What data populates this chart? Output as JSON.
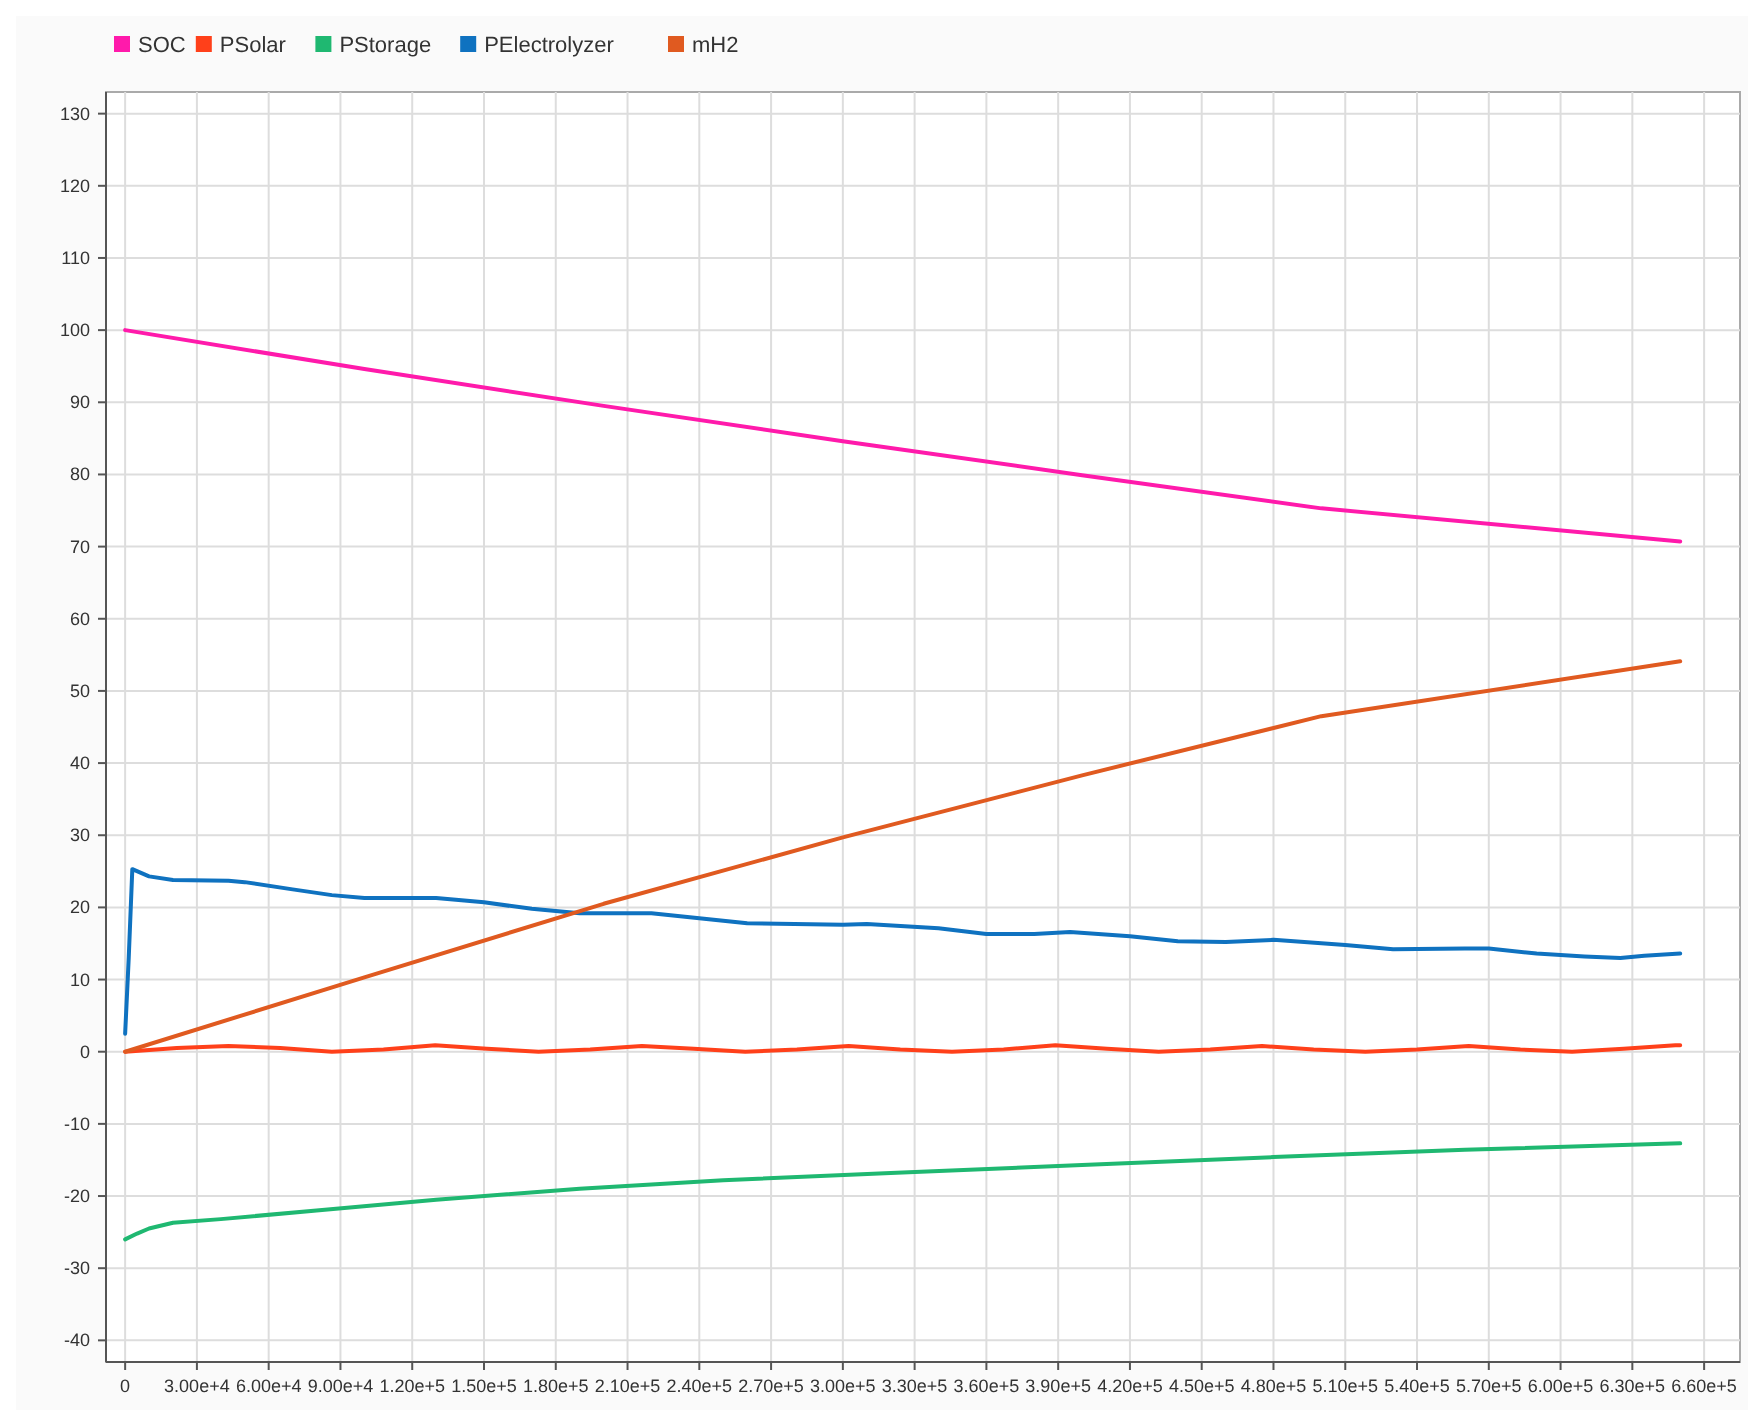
{
  "chart_data": {
    "type": "line",
    "legend": "top left",
    "grid": true,
    "line_style": "solid",
    "marker": "none",
    "xlim": [
      -8000,
      675000
    ],
    "ylim": [
      -43,
      133
    ],
    "xticks": [
      0,
      {
        "value": 30000,
        "label": "3.00e+4"
      },
      {
        "value": 60000,
        "label": "6.00e+4"
      },
      {
        "value": 90000,
        "label": "9.00e+4"
      },
      {
        "value": 120000,
        "label": "1.20e+5"
      },
      {
        "value": 150000,
        "label": "1.50e+5"
      },
      {
        "value": 180000,
        "label": "1.80e+5"
      },
      {
        "value": 210000,
        "label": "2.10e+5"
      },
      {
        "value": 240000,
        "label": "2.40e+5"
      },
      {
        "value": 270000,
        "label": "2.70e+5"
      },
      {
        "value": 300000,
        "label": "3.00e+5"
      },
      {
        "value": 330000,
        "label": "3.30e+5"
      },
      {
        "value": 360000,
        "label": "3.60e+5"
      },
      {
        "value": 390000,
        "label": "3.90e+5"
      },
      {
        "value": 420000,
        "label": "4.20e+5"
      },
      {
        "value": 450000,
        "label": "4.50e+5"
      },
      {
        "value": 480000,
        "label": "4.80e+5"
      },
      {
        "value": 510000,
        "label": "5.10e+5"
      },
      {
        "value": 540000,
        "label": "5.40e+5"
      },
      {
        "value": 570000,
        "label": "5.70e+5"
      },
      {
        "value": 600000,
        "label": "6.00e+5"
      },
      {
        "value": 630000,
        "label": "6.30e+5"
      },
      {
        "value": 660000,
        "label": "6.60e+5"
      }
    ],
    "yticks": [
      -40,
      -30,
      -20,
      -10,
      0,
      10,
      20,
      30,
      40,
      50,
      60,
      70,
      80,
      90,
      100,
      110,
      120,
      130
    ],
    "series": [
      {
        "name": "SOC",
        "color": "#ff1aab",
        "x": [
          0,
          100000,
          200000,
          300000,
          400000,
          500000,
          650000
        ],
        "values": [
          100,
          94.6,
          89.5,
          84.6,
          79.9,
          75.3,
          70.7
        ]
      },
      {
        "name": "PSolar",
        "color": "#ff401a",
        "x": [
          0,
          21600,
          43200,
          64800,
          86400,
          108000,
          129600,
          151200,
          172800,
          194400,
          216000,
          237600,
          259200,
          280800,
          302400,
          324000,
          345600,
          367200,
          388800,
          410400,
          432000,
          453600,
          475200,
          496800,
          518400,
          540000,
          561600,
          583200,
          604800,
          626400,
          648000,
          650000
        ],
        "values": [
          0,
          0.5,
          0.8,
          0.5,
          0,
          0.3,
          0.9,
          0.4,
          0,
          0.3,
          0.8,
          0.4,
          0,
          0.3,
          0.8,
          0.3,
          0,
          0.3,
          0.9,
          0.4,
          0,
          0.3,
          0.8,
          0.3,
          0,
          0.3,
          0.8,
          0.3,
          0,
          0.4,
          0.9,
          0.9
        ]
      },
      {
        "name": "PStorage",
        "color": "#1fb871",
        "x": [
          0,
          5000,
          10000,
          20000,
          40000,
          80000,
          130000,
          190000,
          250000,
          320000,
          400000,
          480000,
          560000,
          650000
        ],
        "values": [
          -26,
          -25.2,
          -24.5,
          -23.7,
          -23.2,
          -22,
          -20.5,
          -19,
          -17.8,
          -16.8,
          -15.7,
          -14.6,
          -13.6,
          -12.7
        ]
      },
      {
        "name": "PElectrolyzer",
        "color": "#0f72c0",
        "x": [
          0,
          1500,
          3000,
          10000,
          20000,
          43200,
          50000,
          70000,
          86400,
          100000,
          130000,
          150000,
          170000,
          190000,
          220000,
          240000,
          260000,
          300000,
          310000,
          340000,
          360000,
          380000,
          395000,
          420000,
          440000,
          460000,
          480000,
          510000,
          530000,
          560000,
          570000,
          590000,
          610000,
          625000,
          635000,
          650000
        ],
        "values": [
          2.5,
          13,
          25.3,
          24.3,
          23.8,
          23.7,
          23.5,
          22.5,
          21.7,
          21.3,
          21.3,
          20.7,
          19.8,
          19.2,
          19.2,
          18.5,
          17.8,
          17.6,
          17.7,
          17.1,
          16.3,
          16.3,
          16.6,
          16,
          15.3,
          15.2,
          15.5,
          14.8,
          14.2,
          14.3,
          14.3,
          13.6,
          13.2,
          13,
          13.3,
          13.6
        ]
      },
      {
        "name": "mH2",
        "color": "#e05a20",
        "x": [
          0,
          100000,
          200000,
          300000,
          400000,
          500000,
          650000
        ],
        "values": [
          0,
          10.3,
          20.5,
          29.7,
          38.3,
          46.5,
          54.1
        ]
      }
    ]
  }
}
